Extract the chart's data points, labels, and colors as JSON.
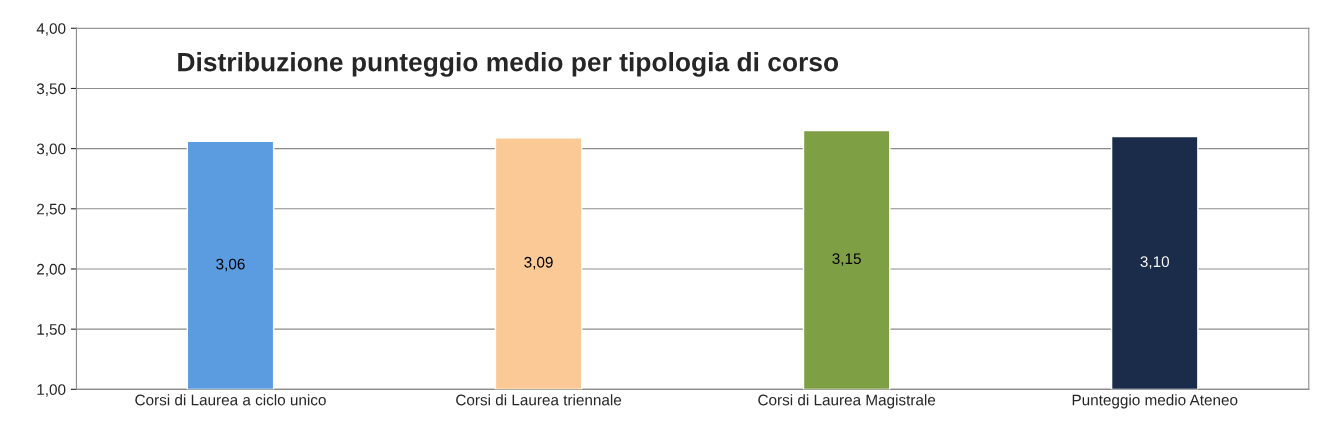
{
  "chart_data": {
    "type": "bar",
    "title": "Distribuzione punteggio medio per tipologia di corso",
    "categories": [
      "Corsi di Laurea a ciclo unico",
      "Corsi di Laurea triennale",
      "Corsi di Laurea Magistrale",
      "Punteggio medio Ateneo"
    ],
    "values": [
      3.06,
      3.09,
      3.15,
      3.1
    ],
    "colors": [
      "#5b9be0",
      "#fbc995",
      "#7f9f45",
      "#1b2c4a"
    ],
    "value_labels": [
      "3,06",
      "3,09",
      "3,15",
      "3,10"
    ],
    "ylim": [
      1.0,
      4.0
    ],
    "yticks": [
      {
        "value": 1.0,
        "label": "1,00"
      },
      {
        "value": 1.5,
        "label": "1,50"
      },
      {
        "value": 2.0,
        "label": "2,00"
      },
      {
        "value": 2.5,
        "label": "2,50"
      },
      {
        "value": 3.0,
        "label": "3,00"
      },
      {
        "value": 3.5,
        "label": "3,50"
      },
      {
        "value": 4.0,
        "label": "4,00"
      }
    ],
    "grid": "y",
    "legend": false
  }
}
